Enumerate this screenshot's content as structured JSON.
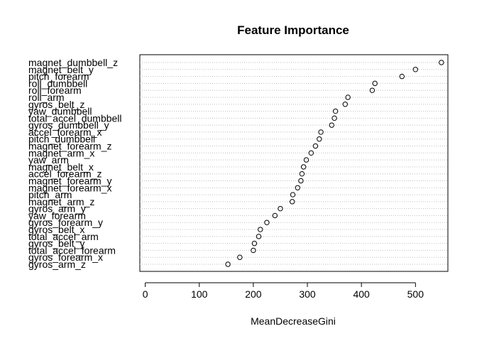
{
  "chart_data": {
    "type": "scatter",
    "title": "Feature Importance",
    "xlabel": "MeanDecreaseGini",
    "ylabel": "",
    "xlim": [
      -10,
      560
    ],
    "xticks": [
      0,
      100,
      200,
      300,
      400,
      500
    ],
    "grid": "dotted horizontal per variable",
    "features": [
      {
        "name": "magnet_dumbbell_z",
        "value": 548
      },
      {
        "name": "magnet_belt_y",
        "value": 500
      },
      {
        "name": "pitch_forearm",
        "value": 475
      },
      {
        "name": "roll_dumbbell",
        "value": 425
      },
      {
        "name": "roll_forearm",
        "value": 420
      },
      {
        "name": "roll_arm",
        "value": 375
      },
      {
        "name": "gyros_belt_z",
        "value": 370
      },
      {
        "name": "yaw_dumbbell",
        "value": 352
      },
      {
        "name": "total_accel_dumbbell",
        "value": 350
      },
      {
        "name": "gyros_dumbbell_y",
        "value": 345
      },
      {
        "name": "accel_forearm_x",
        "value": 325
      },
      {
        "name": "pitch_dumbbell",
        "value": 322
      },
      {
        "name": "magnet_forearm_z",
        "value": 315
      },
      {
        "name": "magnet_arm_x",
        "value": 307
      },
      {
        "name": "yaw_arm",
        "value": 298
      },
      {
        "name": "magnet_belt_x",
        "value": 293
      },
      {
        "name": "accel_forearm_z",
        "value": 290
      },
      {
        "name": "magnet_forearm_y",
        "value": 288
      },
      {
        "name": "magnet_forearm_x",
        "value": 282
      },
      {
        "name": "pitch_arm",
        "value": 273
      },
      {
        "name": "magnet_arm_z",
        "value": 272
      },
      {
        "name": "gyros_arm_y",
        "value": 250
      },
      {
        "name": "yaw_forearm",
        "value": 240
      },
      {
        "name": "gyros_forearm_y",
        "value": 225
      },
      {
        "name": "gyros_belt_x",
        "value": 213
      },
      {
        "name": "total_accel_arm",
        "value": 210
      },
      {
        "name": "gyros_belt_y",
        "value": 202
      },
      {
        "name": "total_accel_forearm",
        "value": 200
      },
      {
        "name": "gyros_forearm_x",
        "value": 175
      },
      {
        "name": "gyros_arm_z",
        "value": 153
      }
    ]
  }
}
